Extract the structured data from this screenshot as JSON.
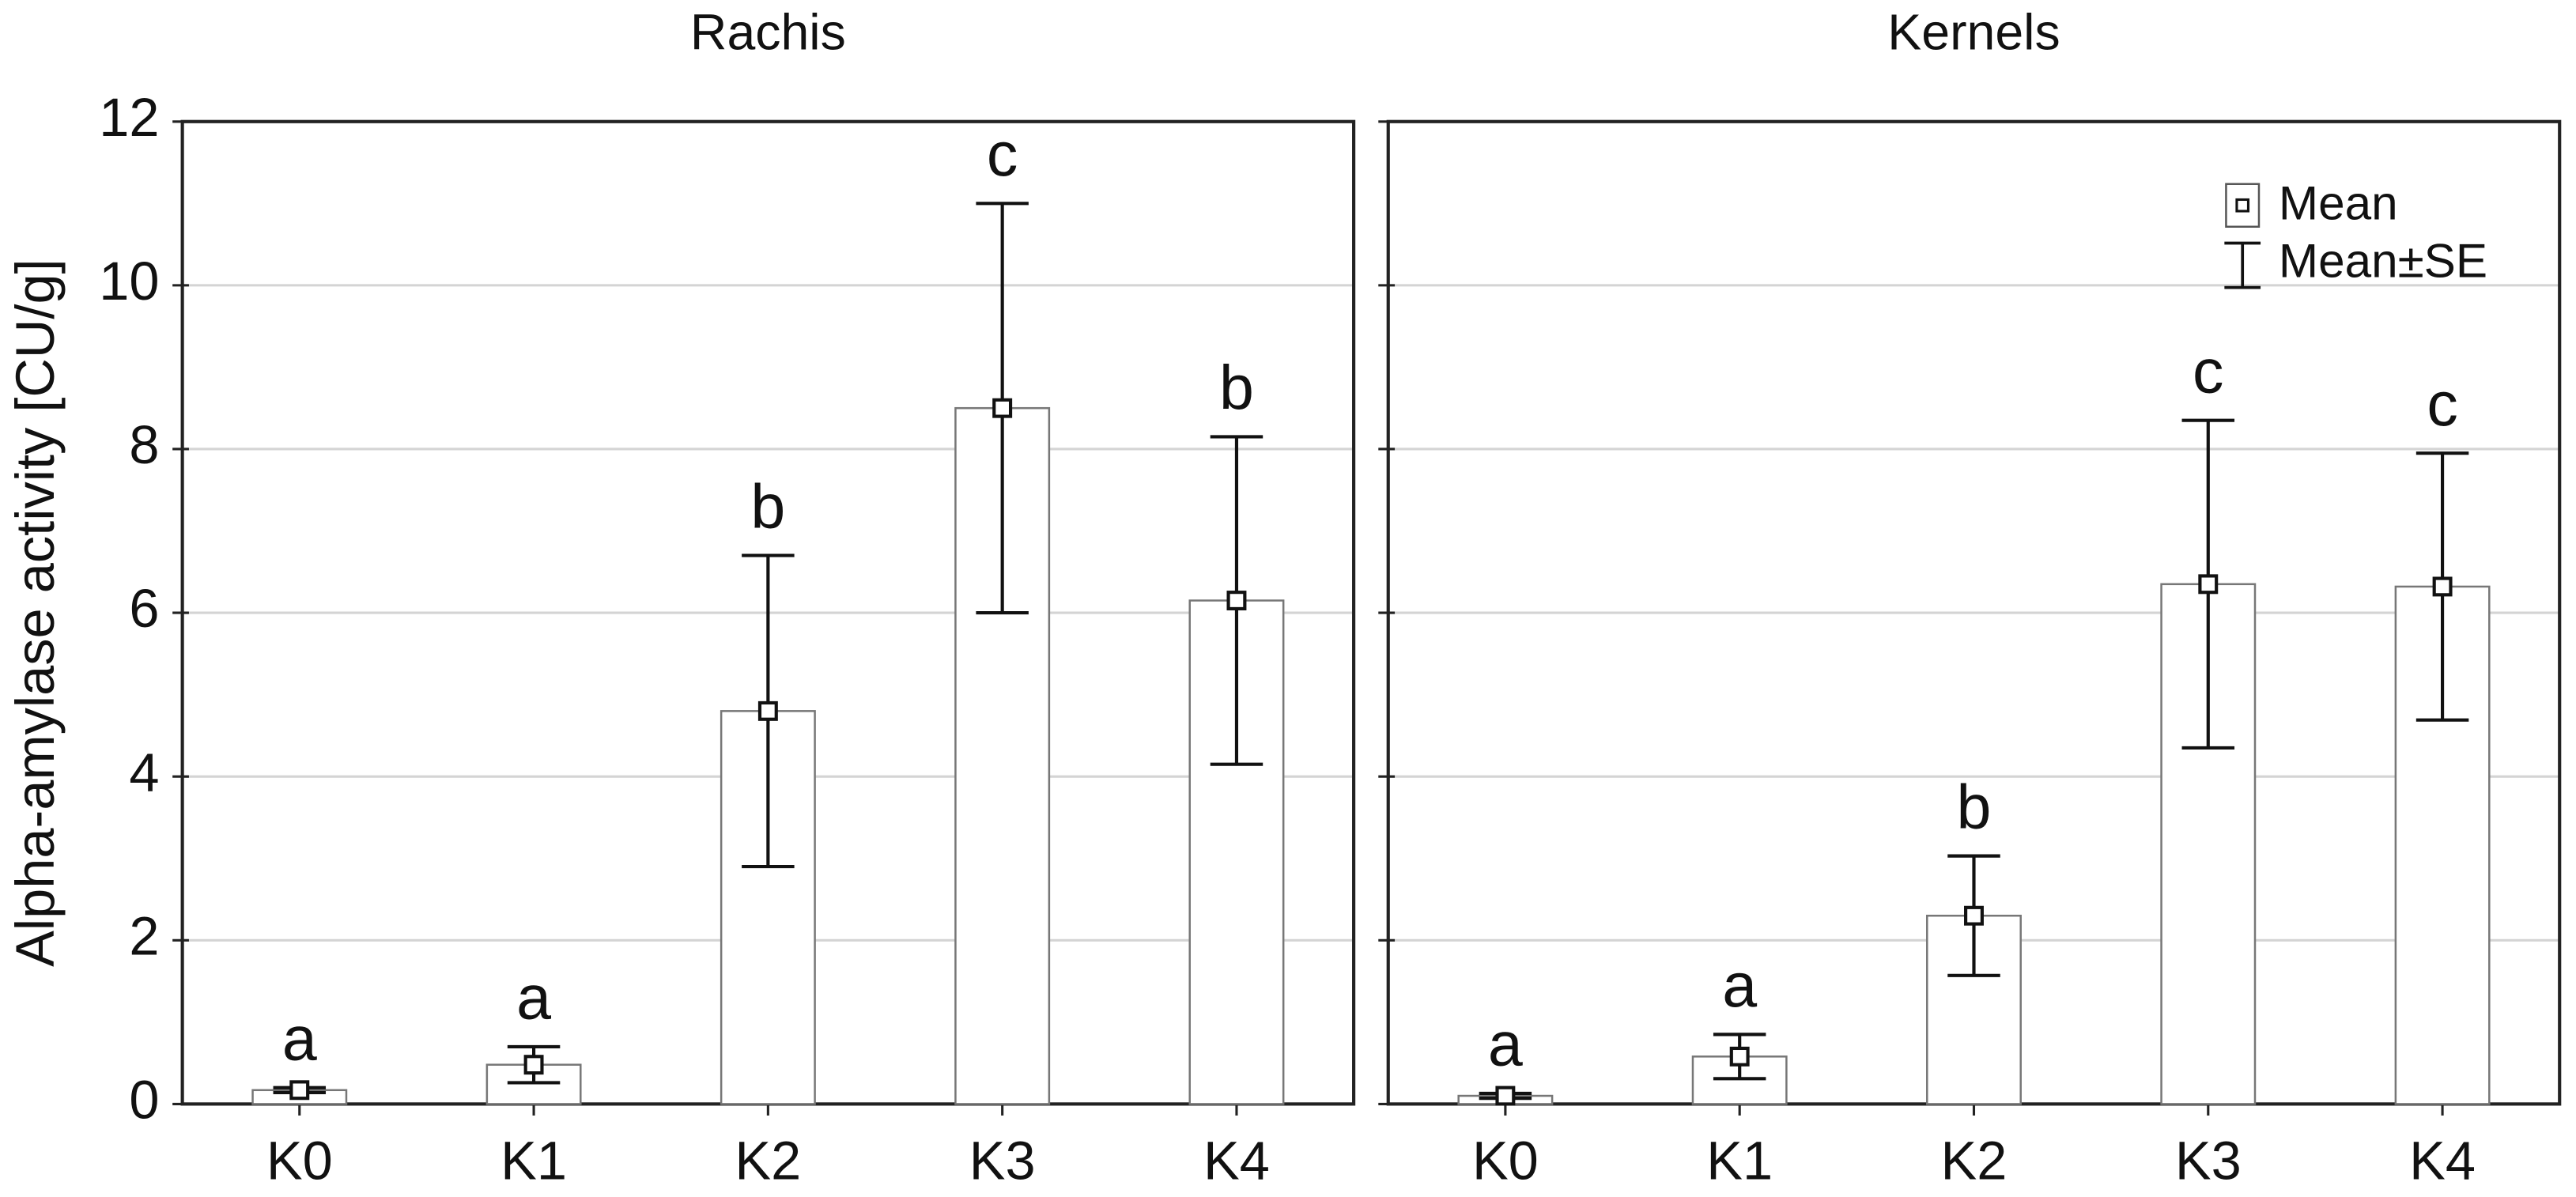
{
  "chart_data": [
    {
      "type": "bar",
      "title": "Rachis",
      "ylabel": "Alpha-amylase activity [CU/g]",
      "categories": [
        "K0",
        "K1",
        "K2",
        "K3",
        "K4"
      ],
      "series": [
        {
          "name": "Mean",
          "color": "#ffffff",
          "values": [
            0.17,
            0.48,
            4.8,
            8.5,
            6.15
          ],
          "errors": [
            0.03,
            0.22,
            1.9,
            2.5,
            2.0
          ]
        }
      ],
      "annotations": [
        "a",
        "a",
        "b",
        "c",
        "b"
      ],
      "ylim": [
        0,
        12
      ],
      "yticks": [
        0,
        2,
        4,
        6,
        8,
        10,
        12
      ],
      "grid": true
    },
    {
      "type": "bar",
      "title": "Kernels",
      "categories": [
        "K0",
        "K1",
        "K2",
        "K3",
        "K4"
      ],
      "series": [
        {
          "name": "Mean",
          "color": "#ffffff",
          "values": [
            0.1,
            0.58,
            2.3,
            6.35,
            6.32
          ],
          "errors": [
            0.03,
            0.27,
            0.73,
            2.0,
            1.63
          ]
        }
      ],
      "annotations": [
        "a",
        "a",
        "b",
        "c",
        "c"
      ],
      "error_label": "Mean±SE",
      "ylim": [
        0,
        12
      ],
      "yticks": [
        0,
        2,
        4,
        6,
        8,
        10,
        12
      ],
      "grid": true,
      "legend": "top-right"
    }
  ]
}
